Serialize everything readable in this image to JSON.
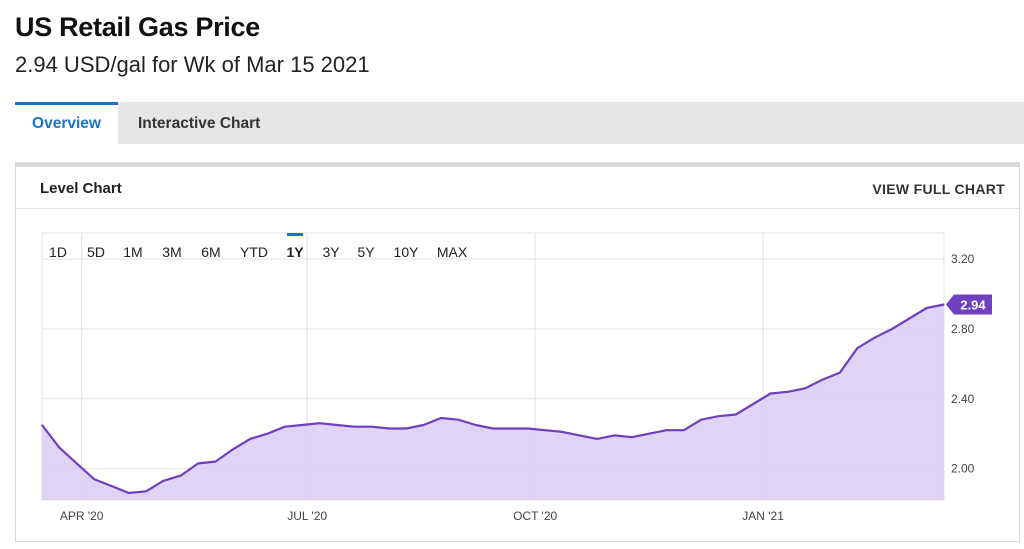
{
  "header": {
    "title": "US Retail Gas Price",
    "subtitle": "2.94 USD/gal for Wk of Mar 15 2021"
  },
  "tabs": [
    {
      "label": "Overview",
      "active": true
    },
    {
      "label": "Interactive Chart",
      "active": false
    }
  ],
  "panel": {
    "title": "Level Chart",
    "view_full_label": "VIEW FULL CHART"
  },
  "range_buttons": [
    {
      "label": "1D",
      "active": false
    },
    {
      "label": "5D",
      "active": false
    },
    {
      "label": "1M",
      "active": false
    },
    {
      "label": "3M",
      "active": false
    },
    {
      "label": "6M",
      "active": false
    },
    {
      "label": "YTD",
      "active": false
    },
    {
      "label": "1Y",
      "active": true
    },
    {
      "label": "3Y",
      "active": false
    },
    {
      "label": "5Y",
      "active": false
    },
    {
      "label": "10Y",
      "active": false
    },
    {
      "label": "MAX",
      "active": false
    }
  ],
  "colors": {
    "accent": "#1a73c6",
    "line": "#6e3fbf",
    "fill": "#d9cdf2",
    "badge": "#6e3fbf",
    "grid": "#e3e3e3"
  },
  "chart_data": {
    "type": "area",
    "title": "",
    "xlabel": "",
    "ylabel": "",
    "ylim": [
      1.82,
      3.35
    ],
    "xlim": [
      "2020-03-16",
      "2021-03-15"
    ],
    "yticks": [
      3.2,
      2.8,
      2.4,
      2.0
    ],
    "ytick_labels": [
      "3.20",
      "2.80",
      "2.40",
      "2.00"
    ],
    "xticks": [
      "2020-04-01",
      "2020-07-01",
      "2020-10-01",
      "2021-01-01"
    ],
    "xtick_labels": [
      "APR '20",
      "JUL '20",
      "OCT '20",
      "JAN '21"
    ],
    "grid": true,
    "series": [
      {
        "x": [
          "2020-03-16",
          "2020-03-23",
          "2020-03-30",
          "2020-04-06",
          "2020-04-13",
          "2020-04-20",
          "2020-04-27",
          "2020-05-04",
          "2020-05-11",
          "2020-05-18",
          "2020-05-25",
          "2020-06-01",
          "2020-06-08",
          "2020-06-15",
          "2020-06-22",
          "2020-06-29",
          "2020-07-06",
          "2020-07-13",
          "2020-07-20",
          "2020-07-27",
          "2020-08-03",
          "2020-08-10",
          "2020-08-17",
          "2020-08-24",
          "2020-08-31",
          "2020-09-07",
          "2020-09-14",
          "2020-09-21",
          "2020-09-28",
          "2020-10-05",
          "2020-10-12",
          "2020-10-19",
          "2020-10-26",
          "2020-11-02",
          "2020-11-09",
          "2020-11-16",
          "2020-11-23",
          "2020-11-30",
          "2020-12-07",
          "2020-12-14",
          "2020-12-21",
          "2020-12-28",
          "2021-01-04",
          "2021-01-11",
          "2021-01-18",
          "2021-01-25",
          "2021-02-01",
          "2021-02-08",
          "2021-02-15",
          "2021-02-22",
          "2021-03-01",
          "2021-03-08",
          "2021-03-15"
        ],
        "values": [
          2.25,
          2.12,
          2.03,
          1.94,
          1.9,
          1.86,
          1.87,
          1.93,
          1.96,
          2.03,
          2.04,
          2.11,
          2.17,
          2.2,
          2.24,
          2.25,
          2.26,
          2.25,
          2.24,
          2.24,
          2.23,
          2.23,
          2.25,
          2.29,
          2.28,
          2.25,
          2.23,
          2.23,
          2.23,
          2.22,
          2.21,
          2.19,
          2.17,
          2.19,
          2.18,
          2.2,
          2.22,
          2.22,
          2.28,
          2.3,
          2.31,
          2.37,
          2.43,
          2.44,
          2.46,
          2.51,
          2.55,
          2.69,
          2.75,
          2.8,
          2.86,
          2.92,
          2.94
        ]
      }
    ],
    "last_value_label": "2.94"
  }
}
